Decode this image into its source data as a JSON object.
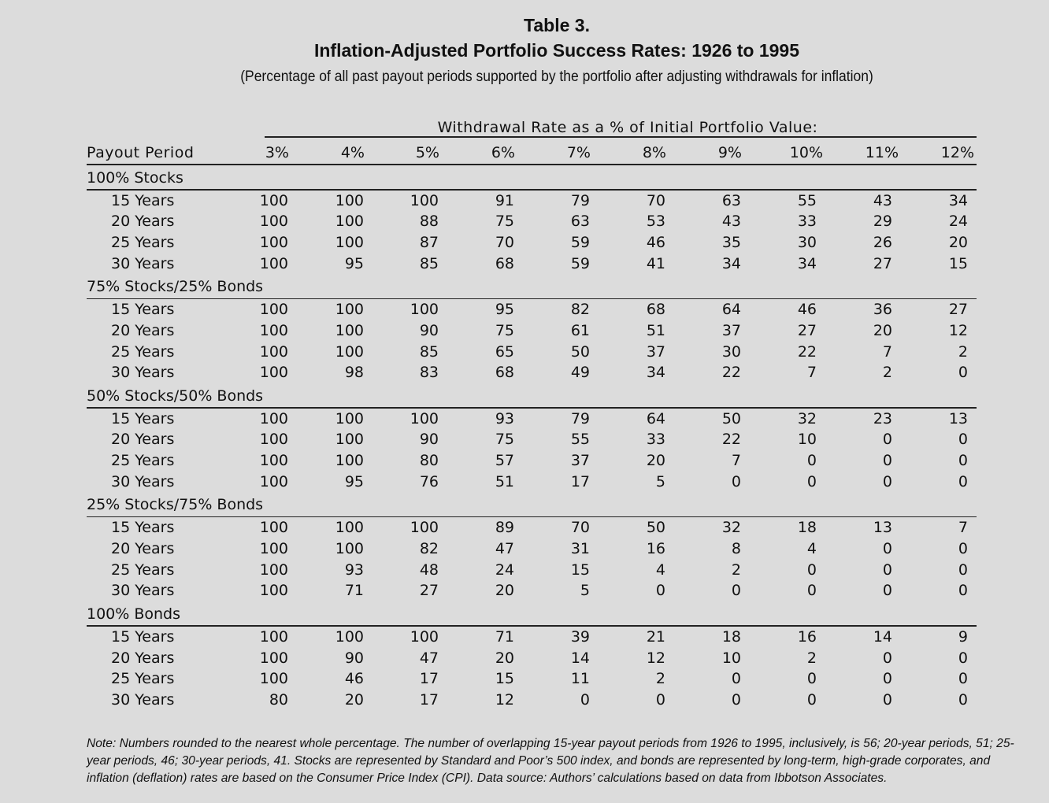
{
  "header": {
    "title": "Table 3.",
    "subtitle": "Inflation-Adjusted Portfolio Success Rates: 1926 to 1995",
    "description": "(Percentage of all past payout periods supported by the portfolio after adjusting withdrawals for inflation)"
  },
  "table": {
    "column_group": "Withdrawal Rate as a % of Initial Portfolio Value:",
    "row_header": "Payout Period",
    "columns": [
      "3%",
      "4%",
      "5%",
      "6%",
      "7%",
      "8%",
      "9%",
      "10%",
      "11%",
      "12%"
    ],
    "groups": [
      {
        "name": "100% Stocks",
        "rows": [
          {
            "label": "15 Years",
            "values": [
              100,
              100,
              100,
              91,
              79,
              70,
              63,
              55,
              43,
              34
            ]
          },
          {
            "label": "20 Years",
            "values": [
              100,
              100,
              88,
              75,
              63,
              53,
              43,
              33,
              29,
              24
            ]
          },
          {
            "label": "25 Years",
            "values": [
              100,
              100,
              87,
              70,
              59,
              46,
              35,
              30,
              26,
              20
            ]
          },
          {
            "label": "30 Years",
            "values": [
              100,
              95,
              85,
              68,
              59,
              41,
              34,
              34,
              27,
              15
            ]
          }
        ]
      },
      {
        "name": "75% Stocks/25% Bonds",
        "rows": [
          {
            "label": "15 Years",
            "values": [
              100,
              100,
              100,
              95,
              82,
              68,
              64,
              46,
              36,
              27
            ]
          },
          {
            "label": "20 Years",
            "values": [
              100,
              100,
              90,
              75,
              61,
              51,
              37,
              27,
              20,
              12
            ]
          },
          {
            "label": "25 Years",
            "values": [
              100,
              100,
              85,
              65,
              50,
              37,
              30,
              22,
              7,
              2
            ]
          },
          {
            "label": "30 Years",
            "values": [
              100,
              98,
              83,
              68,
              49,
              34,
              22,
              7,
              2,
              0
            ]
          }
        ]
      },
      {
        "name": "50% Stocks/50% Bonds",
        "rows": [
          {
            "label": "15 Years",
            "values": [
              100,
              100,
              100,
              93,
              79,
              64,
              50,
              32,
              23,
              13
            ]
          },
          {
            "label": "20 Years",
            "values": [
              100,
              100,
              90,
              75,
              55,
              33,
              22,
              10,
              0,
              0
            ]
          },
          {
            "label": "25 Years",
            "values": [
              100,
              100,
              80,
              57,
              37,
              20,
              7,
              0,
              0,
              0
            ]
          },
          {
            "label": "30 Years",
            "values": [
              100,
              95,
              76,
              51,
              17,
              5,
              0,
              0,
              0,
              0
            ]
          }
        ]
      },
      {
        "name": "25% Stocks/75% Bonds",
        "rows": [
          {
            "label": "15 Years",
            "values": [
              100,
              100,
              100,
              89,
              70,
              50,
              32,
              18,
              13,
              7
            ]
          },
          {
            "label": "20 Years",
            "values": [
              100,
              100,
              82,
              47,
              31,
              16,
              8,
              4,
              0,
              0
            ]
          },
          {
            "label": "25 Years",
            "values": [
              100,
              93,
              48,
              24,
              15,
              4,
              2,
              0,
              0,
              0
            ]
          },
          {
            "label": "30 Years",
            "values": [
              100,
              71,
              27,
              20,
              5,
              0,
              0,
              0,
              0,
              0
            ]
          }
        ]
      },
      {
        "name": "100% Bonds",
        "rows": [
          {
            "label": "15 Years",
            "values": [
              100,
              100,
              100,
              71,
              39,
              21,
              18,
              16,
              14,
              9
            ]
          },
          {
            "label": "20 Years",
            "values": [
              100,
              90,
              47,
              20,
              14,
              12,
              10,
              2,
              0,
              0
            ]
          },
          {
            "label": "25 Years",
            "values": [
              100,
              46,
              17,
              15,
              11,
              2,
              0,
              0,
              0,
              0
            ]
          },
          {
            "label": "30 Years",
            "values": [
              80,
              20,
              17,
              12,
              0,
              0,
              0,
              0,
              0,
              0
            ]
          }
        ]
      }
    ]
  },
  "note": "Note: Numbers rounded to the nearest whole percentage. The number of overlapping 15-year payout periods from 1926 to 1995, inclusively, is 56; 20-year periods, 51; 25-year periods, 46; 30-year periods, 41. Stocks are represented by Standard and Poor’s 500 index, and bonds are represented by long-term, high-grade corporates, and inflation (deflation) rates are based on the Consumer Price Index (CPI). Data source: Authors’ calculations based on data from Ibbotson Associates."
}
